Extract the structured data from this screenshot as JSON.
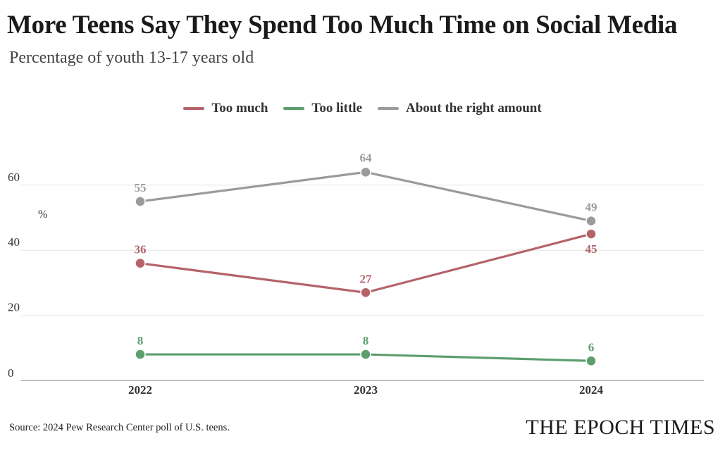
{
  "title": "More Teens Say They Spend Too Much Time on Social Media",
  "subtitle": "Percentage of youth 13-17 years old",
  "source": "Source: 2024 Pew Research Center poll of U.S. teens.",
  "logo": "THE EPOCH TIMES",
  "chart_data": {
    "type": "line",
    "x": [
      "2022",
      "2023",
      "2024"
    ],
    "ylabel": "%",
    "ylim": [
      0,
      70
    ],
    "yticks": [
      "0",
      "20",
      "40",
      "60"
    ],
    "grid": true,
    "legend_position": "top-center",
    "series": [
      {
        "name": "Too much",
        "values": [
          36,
          27,
          45
        ],
        "labels": [
          "36",
          "27",
          "45"
        ],
        "color": "#b5636a"
      },
      {
        "name": "Too little",
        "values": [
          8,
          8,
          6
        ],
        "labels": [
          "8",
          "8",
          "6"
        ],
        "color": "#5c9e6e"
      },
      {
        "name": "About the right amount",
        "values": [
          55,
          64,
          49
        ],
        "labels": [
          "55",
          "64",
          "49"
        ],
        "color": "#9b9b9b"
      }
    ]
  }
}
